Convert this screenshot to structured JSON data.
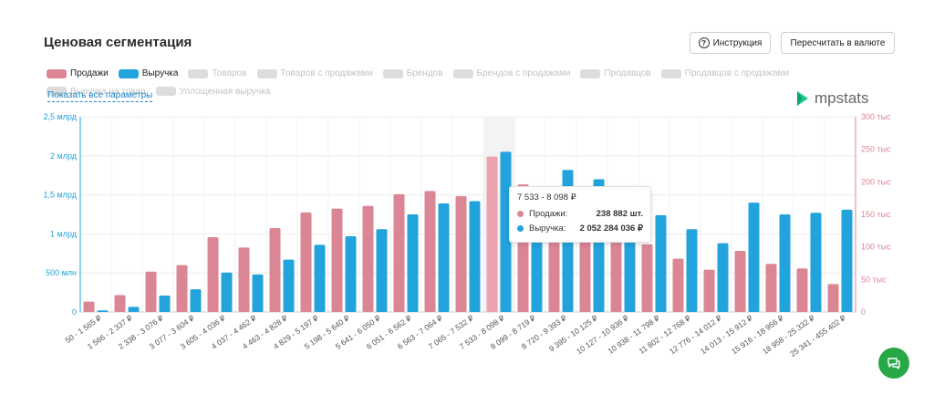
{
  "header": {
    "title": "Ценовая сегментация",
    "instruction_label": "Инструкция",
    "recalc_label": "Пересчитать в валюте"
  },
  "legend": {
    "items": [
      {
        "label": "Продажи",
        "active": true,
        "color": "#db8694"
      },
      {
        "label": "Выручка",
        "active": true,
        "color": "#22a3dc"
      },
      {
        "label": "Товаров",
        "active": false
      },
      {
        "label": "Товаров с продажами",
        "active": false
      },
      {
        "label": "Брендов",
        "active": false
      },
      {
        "label": "Брендов с продажами",
        "active": false
      },
      {
        "label": "Продавцов",
        "active": false
      },
      {
        "label": "Продавцов с продажами",
        "active": false
      },
      {
        "label": "Выручка на товар",
        "active": false
      },
      {
        "label": "Уплощенная выручка",
        "active": false
      }
    ],
    "show_all": "Показать все параметры"
  },
  "logo": {
    "text": "mpstats",
    "color": "#1fc98a"
  },
  "colors": {
    "sales": "#db8694",
    "revenue": "#22a3dc",
    "sales_highlight": "#eba3b0",
    "grid": "#ececec"
  },
  "tooltip": {
    "title": "7 533 - 8 098 ₽",
    "rows": [
      {
        "label": "Продажи:",
        "value": "238 882 шт.",
        "color": "#db8694"
      },
      {
        "label": "Выручка:",
        "value": "2 052 284 036 ₽",
        "color": "#22a3dc"
      }
    ]
  },
  "chart_data": {
    "type": "bar",
    "categories": [
      "50 - 1 565 ₽",
      "1 566 - 2 337 ₽",
      "2 338 - 3 076 ₽",
      "3 077 - 3 604 ₽",
      "3 605 - 4 036 ₽",
      "4 037 - 4 462 ₽",
      "4 463 - 4 828 ₽",
      "4 829 - 5 197 ₽",
      "5 198 - 5 640 ₽",
      "5 641 - 6 050 ₽",
      "6 051 - 6 562 ₽",
      "6 563 - 7 064 ₽",
      "7 065 - 7 532 ₽",
      "7 533 - 8 098 ₽",
      "8 099 - 8 719 ₽",
      "8 720 - 9 393 ₽",
      "9 395 - 10 125 ₽",
      "10 127 - 10 936 ₽",
      "10 938 - 11 798 ₽",
      "11 802 - 12 768 ₽",
      "12 776 - 14 012 ₽",
      "14 013 - 15 912 ₽",
      "15 916 - 18 956 ₽",
      "18 958 - 25 332 ₽",
      "25 341 - 455 402 ₽"
    ],
    "series": [
      {
        "name": "Продажи",
        "axis": "right",
        "unit": "шт.",
        "values": [
          16000,
          26000,
          62000,
          72000,
          115000,
          99000,
          129000,
          153000,
          159000,
          163000,
          181000,
          186000,
          178000,
          238882,
          196000,
          188000,
          174000,
          165000,
          104000,
          82000,
          65000,
          94000,
          74000,
          67000,
          43000
        ]
      },
      {
        "name": "Выручка",
        "axis": "left",
        "unit": "₽",
        "values": [
          20000000,
          65000000,
          210000000,
          290000000,
          505000000,
          480000000,
          670000000,
          860000000,
          970000000,
          1060000000,
          1250000000,
          1390000000,
          1420000000,
          2052284036,
          1480000000,
          1820000000,
          1700000000,
          1580000000,
          1240000000,
          1060000000,
          880000000,
          1400000000,
          1250000000,
          1270000000,
          1310000000
        ]
      }
    ],
    "y_left": {
      "ticks": [
        0,
        500000000,
        1000000000,
        1500000000,
        2000000000,
        2500000000
      ],
      "tick_labels": [
        "0",
        "500 млн",
        "1 млрд",
        "1,5 млрд",
        "2 млрд",
        "2,5 млрд"
      ],
      "range": [
        0,
        2500000000
      ]
    },
    "y_right": {
      "ticks": [
        0,
        50000,
        100000,
        150000,
        200000,
        250000,
        300000
      ],
      "tick_labels": [
        "0",
        "50 тыс",
        "100 тыс",
        "150 тыс",
        "200 тыс",
        "250 тыс",
        "300 тыс"
      ],
      "range": [
        0,
        300000
      ]
    },
    "highlight_index": 13,
    "grid": true
  }
}
